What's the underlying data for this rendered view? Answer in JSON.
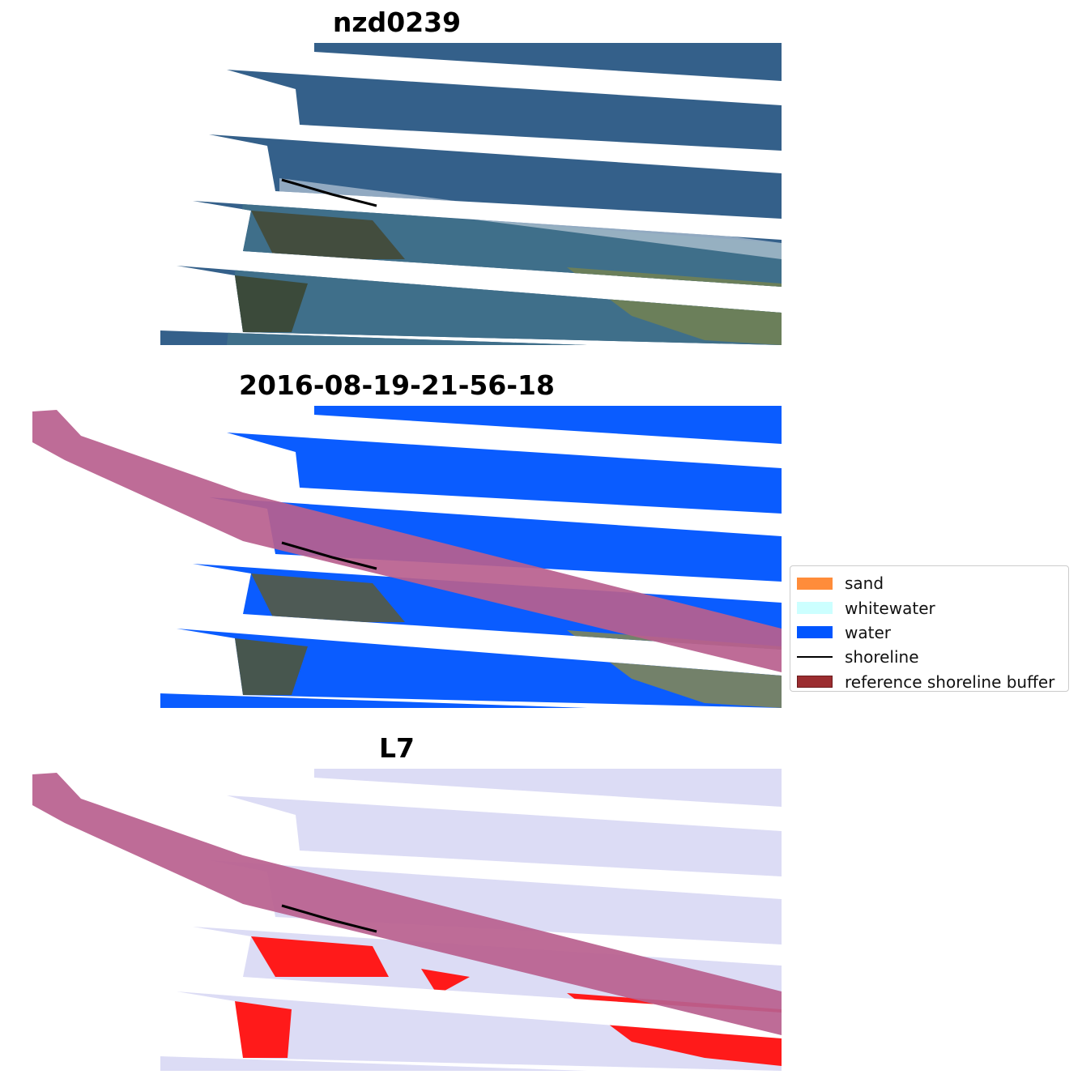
{
  "panels": [
    {
      "title": "nzd0239"
    },
    {
      "title": "2016-08-19-21-56-18"
    },
    {
      "title": "L7"
    }
  ],
  "legend": {
    "items": [
      {
        "label": "sand",
        "color": "#ff8c3a",
        "kind": "patch"
      },
      {
        "label": "whitewater",
        "color": "#ccffff",
        "kind": "patch"
      },
      {
        "label": "water",
        "color": "#0055ff",
        "kind": "patch"
      },
      {
        "label": "shoreline",
        "color": "#000000",
        "kind": "line"
      },
      {
        "label": "reference shoreline buffer",
        "color": "#9b2d30",
        "kind": "patch"
      }
    ]
  },
  "colors": {
    "rgb_water": "#34628a",
    "rgb_land": "#5a6e58",
    "class_water": "#0a5cff",
    "buffer": "#b8608e",
    "index_bg": "#dcdcf5",
    "index_land": "#ff1a1a"
  }
}
